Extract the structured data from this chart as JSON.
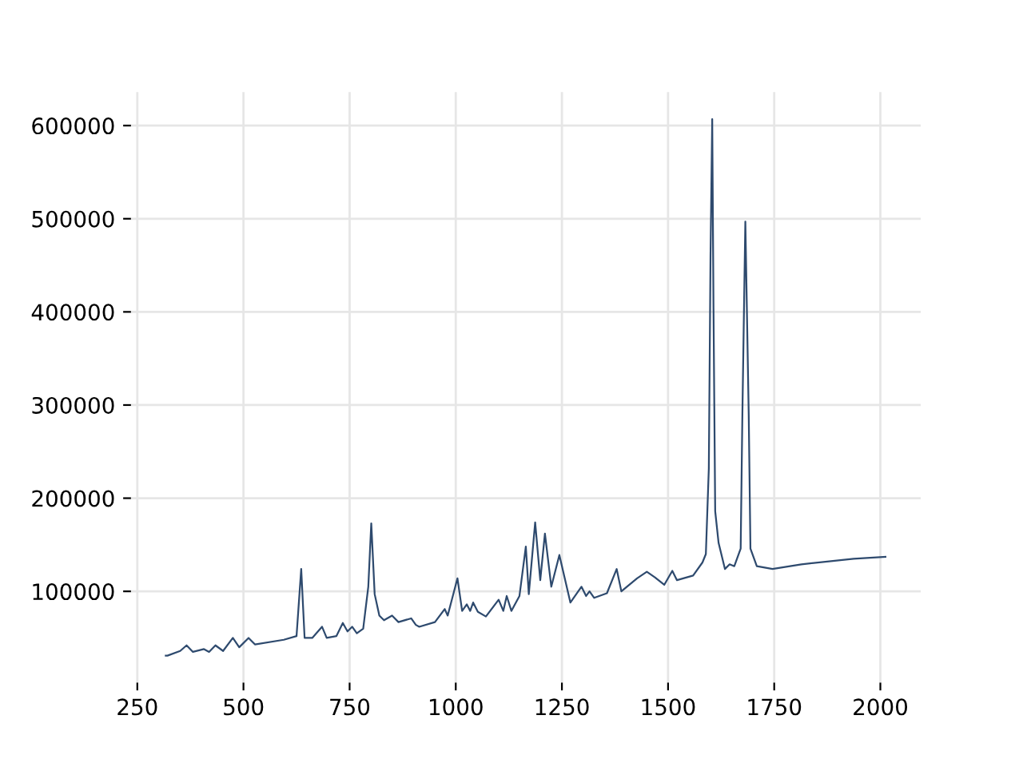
{
  "chart_data": {
    "type": "line",
    "x": [
      317,
      321,
      351,
      366,
      381,
      407,
      419,
      434,
      452,
      475,
      490,
      512,
      527,
      595,
      625,
      636,
      644,
      662,
      685,
      696,
      719,
      734,
      745,
      756,
      767,
      782,
      794,
      801,
      809,
      820,
      831,
      850,
      865,
      895,
      906,
      914,
      951,
      974,
      981,
      1004,
      1015,
      1026,
      1034,
      1041,
      1052,
      1071,
      1101,
      1112,
      1120,
      1131,
      1150,
      1165,
      1172,
      1187,
      1199,
      1210,
      1225,
      1244,
      1270,
      1296,
      1307,
      1315,
      1326,
      1356,
      1379,
      1390,
      1427,
      1450,
      1469,
      1491,
      1510,
      1521,
      1559,
      1581,
      1589,
      1596,
      1600,
      1604,
      1607,
      1611,
      1619,
      1634,
      1645,
      1656,
      1671,
      1675,
      1682,
      1690,
      1694,
      1709,
      1746,
      1814,
      1937,
      2012
    ],
    "series": [
      {
        "color": "#2e4a6e",
        "values": [
          31000,
          31000,
          36000,
          42000,
          35000,
          38000,
          35000,
          42000,
          36000,
          50000,
          40000,
          50000,
          43000,
          48000,
          52000,
          124000,
          50000,
          50000,
          62000,
          50000,
          52000,
          66000,
          57000,
          62000,
          55000,
          60000,
          105000,
          173000,
          97000,
          74000,
          69000,
          74000,
          67000,
          71000,
          64000,
          62000,
          67000,
          81000,
          74000,
          114000,
          79000,
          86000,
          79000,
          88000,
          78000,
          73000,
          91000,
          79000,
          95000,
          79000,
          95000,
          148000,
          97000,
          174000,
          112000,
          162000,
          105000,
          139000,
          88000,
          105000,
          95000,
          100000,
          93000,
          98000,
          124000,
          100000,
          114000,
          121000,
          115000,
          107000,
          122000,
          112000,
          117000,
          131000,
          140000,
          232000,
          461000,
          607000,
          404000,
          186000,
          152000,
          124000,
          129000,
          127000,
          146000,
          289000,
          497000,
          289000,
          146000,
          127000,
          124000,
          129000,
          135000,
          137000
        ]
      }
    ],
    "xlim": [
      235,
      2095
    ],
    "ylim": [
      2000,
      636000
    ],
    "xticks": [
      250,
      500,
      750,
      1000,
      1250,
      1500,
      1750,
      2000
    ],
    "yticks": [
      100000,
      200000,
      300000,
      400000,
      500000,
      600000
    ],
    "grid": true,
    "legend": false
  }
}
